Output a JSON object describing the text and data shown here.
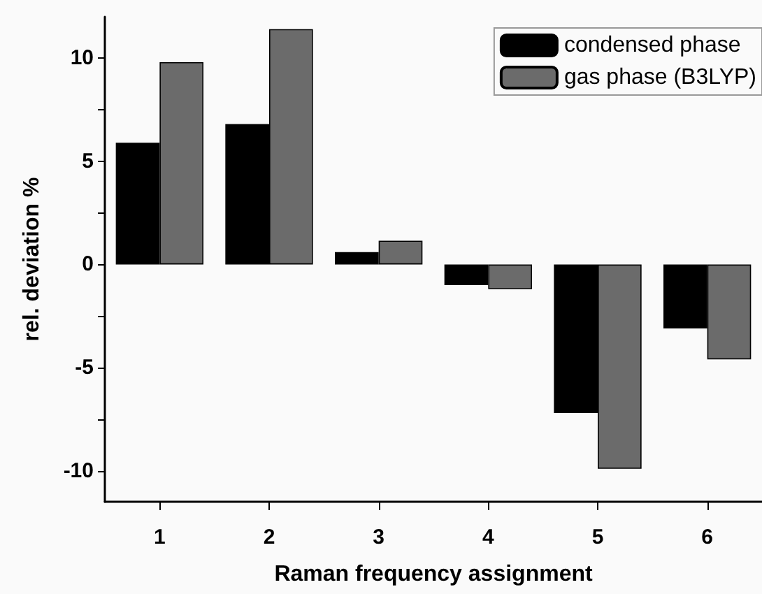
{
  "chart_data": {
    "type": "bar",
    "xlabel": "Raman frequency assignment",
    "ylabel": "rel. deviation %",
    "categories": [
      "1",
      "2",
      "3",
      "4",
      "5",
      "6"
    ],
    "series": [
      {
        "name": "condensed phase",
        "color": "#000000",
        "values": [
          5.9,
          6.8,
          0.6,
          -1.0,
          -7.2,
          -3.1
        ]
      },
      {
        "name": "gas phase (B3LYP)",
        "color": "#6b6b6b",
        "values": [
          9.8,
          11.4,
          1.15,
          -1.2,
          -9.9,
          -4.6
        ]
      }
    ],
    "ylim": [
      -11.5,
      12
    ],
    "yticks": [
      -10,
      {
        "value": -7.5,
        "label": null
      },
      -5,
      {
        "value": -2.5,
        "label": null
      },
      0,
      {
        "value": 2.5,
        "label": null
      },
      5,
      {
        "value": 7.5,
        "label": null
      },
      10
    ],
    "grid": false,
    "legend": "top right"
  }
}
